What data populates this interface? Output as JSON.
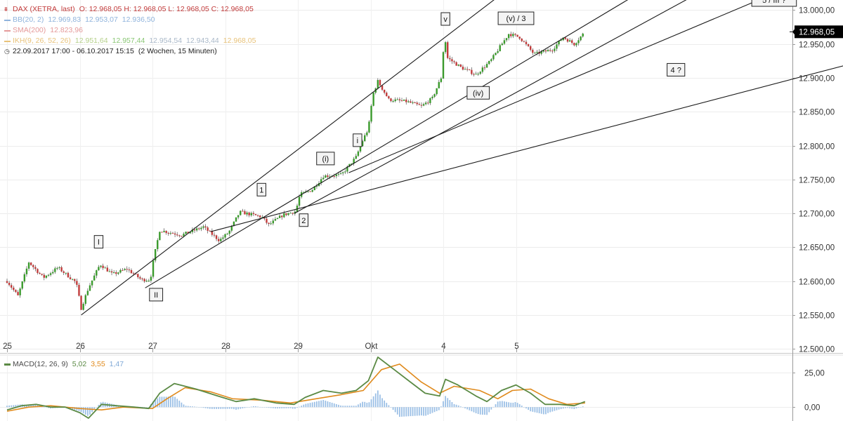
{
  "legend": {
    "title": "DAX (XETRA, last)",
    "ohlc": "O: 12.968,05  H: 12.968,05  L: 12.968,05  C: 12.968,05",
    "bb": {
      "label": "BB(20, 2)",
      "values": [
        "12.969,83",
        "12.953,07",
        "12.936,50"
      ]
    },
    "sma": {
      "label": "SMA(200)",
      "value": "12.823,96"
    },
    "ikh": {
      "label": "IKH(9, 26, 52, 26)",
      "values": [
        "12.951,64",
        "12.957,44",
        "12.954,54",
        "12.943,44",
        "12.968,05"
      ]
    },
    "range": "22.09.2017 17:00 - 06.10.2017 15:15",
    "period": "(2 Wochen, 15 Minuten)"
  },
  "macd_legend": {
    "label": "MACD(12, 26, 9)",
    "values": [
      "5,02",
      "3,55",
      "1,47"
    ]
  },
  "colors": {
    "up": "#3a9a2c",
    "down": "#c23b3b",
    "macd": "#5b8a45",
    "signal": "#e08a1c",
    "hist": "#9cc0e6",
    "bb": "#8fb3dc",
    "sma": "#e59a9a",
    "ikh": "#e8c27a",
    "price_tag": "#000000"
  },
  "chart_data": [
    {
      "type": "candlestick",
      "title": "",
      "xlabel": "",
      "ylabel": "",
      "x_ticks": [
        "25",
        "26",
        "27",
        "28",
        "29",
        "Okt",
        "4",
        "5"
      ],
      "y_ticks": [
        "12.500,00",
        "12.550,00",
        "12.600,00",
        "12.650,00",
        "12.700,00",
        "12.750,00",
        "12.800,00",
        "12.850,00",
        "12.900,00",
        "12.950,00",
        "13.000,00"
      ],
      "ylim": [
        12495,
        13015
      ],
      "last_price": 12968.05,
      "last_price_label": "12.968,05",
      "grid": true,
      "close_path": [
        {
          "d": 25.0,
          "v": 12600
        },
        {
          "d": 25.15,
          "v": 12578
        },
        {
          "d": 25.3,
          "v": 12628
        },
        {
          "d": 25.5,
          "v": 12605
        },
        {
          "d": 25.7,
          "v": 12620
        },
        {
          "d": 25.95,
          "v": 12598
        },
        {
          "d": 26.02,
          "v": 12560
        },
        {
          "d": 26.12,
          "v": 12590
        },
        {
          "d": 26.28,
          "v": 12625
        },
        {
          "d": 26.45,
          "v": 12610
        },
        {
          "d": 26.65,
          "v": 12618
        },
        {
          "d": 26.85,
          "v": 12602
        },
        {
          "d": 26.97,
          "v": 12602
        },
        {
          "d": 27.02,
          "v": 12635
        },
        {
          "d": 27.1,
          "v": 12675
        },
        {
          "d": 27.4,
          "v": 12668
        },
        {
          "d": 27.7,
          "v": 12680
        },
        {
          "d": 27.92,
          "v": 12660
        },
        {
          "d": 28.05,
          "v": 12672
        },
        {
          "d": 28.2,
          "v": 12702
        },
        {
          "d": 28.5,
          "v": 12695
        },
        {
          "d": 28.6,
          "v": 12683
        },
        {
          "d": 28.8,
          "v": 12698
        },
        {
          "d": 28.97,
          "v": 12703
        },
        {
          "d": 29.03,
          "v": 12728
        },
        {
          "d": 29.2,
          "v": 12735
        },
        {
          "d": 29.35,
          "v": 12755
        },
        {
          "d": 29.6,
          "v": 12757
        },
        {
          "d": 29.8,
          "v": 12783
        },
        {
          "d": 29.9,
          "v": 12810
        },
        {
          "d": 29.97,
          "v": 12825
        },
        {
          "d": 30.03,
          "v": 12875
        },
        {
          "d": 30.1,
          "v": 12895
        },
        {
          "d": 30.25,
          "v": 12868
        },
        {
          "d": 30.5,
          "v": 12865
        },
        {
          "d": 30.7,
          "v": 12858
        },
        {
          "d": 30.85,
          "v": 12870
        },
        {
          "d": 30.97,
          "v": 12900
        },
        {
          "d": 31.02,
          "v": 12965
        },
        {
          "d": 31.05,
          "v": 12930
        },
        {
          "d": 31.25,
          "v": 12915
        },
        {
          "d": 31.45,
          "v": 12905
        },
        {
          "d": 31.65,
          "v": 12925
        },
        {
          "d": 31.9,
          "v": 12965
        },
        {
          "d": 32.05,
          "v": 12960
        },
        {
          "d": 32.25,
          "v": 12935
        },
        {
          "d": 32.5,
          "v": 12942
        },
        {
          "d": 32.65,
          "v": 12960
        },
        {
          "d": 32.8,
          "v": 12950
        },
        {
          "d": 32.95,
          "v": 12968
        }
      ],
      "trend_lines": [
        {
          "from": {
            "d": 26.02,
            "v": 12550
          },
          "to": {
            "d": 32.0,
            "v": 13040
          }
        },
        {
          "from": {
            "d": 26.9,
            "v": 12590
          },
          "to": {
            "d": 34.0,
            "v": 13045
          }
        },
        {
          "from": {
            "d": 28.95,
            "v": 12700
          },
          "to": {
            "d": 34.85,
            "v": 13045
          }
        },
        {
          "from": {
            "d": 29.7,
            "v": 12760
          },
          "to": {
            "d": 36.0,
            "v": 13045
          }
        },
        {
          "from": {
            "d": 27.8,
            "v": 12673
          },
          "to": {
            "d": 38.0,
            "v": 12960
          }
        }
      ],
      "wave_labels": [
        {
          "text": "I",
          "d": 26.26,
          "v": 12658
        },
        {
          "text": "II",
          "d": 27.05,
          "v": 12580
        },
        {
          "text": "1",
          "d": 28.5,
          "v": 12735
        },
        {
          "text": "2",
          "d": 29.08,
          "v": 12690
        },
        {
          "text": "(i)",
          "d": 29.38,
          "v": 12781
        },
        {
          "text": "i",
          "d": 29.82,
          "v": 12808
        },
        {
          "text": "v",
          "d": 31.03,
          "v": 12987
        },
        {
          "text": "(v) / 3",
          "d": 32.0,
          "v": 12988
        },
        {
          "text": "(iv)",
          "d": 31.48,
          "v": 12878
        },
        {
          "text": "4 ?",
          "d": 34.2,
          "v": 12912
        },
        {
          "text": "5 / III ?",
          "d": 35.55,
          "v": 13015
        }
      ]
    },
    {
      "type": "line",
      "title": "MACD(12, 26, 9)",
      "y_ticks": [
        "25,00",
        "0,00"
      ],
      "ylim": [
        -10,
        37
      ],
      "series": [
        {
          "name": "MACD",
          "values": [
            {
              "d": 25.0,
              "v": -2
            },
            {
              "d": 25.2,
              "v": 1
            },
            {
              "d": 25.4,
              "v": 2
            },
            {
              "d": 25.6,
              "v": 0
            },
            {
              "d": 25.8,
              "v": 0
            },
            {
              "d": 26.0,
              "v": -4
            },
            {
              "d": 26.12,
              "v": -8
            },
            {
              "d": 26.3,
              "v": 2
            },
            {
              "d": 26.5,
              "v": 1
            },
            {
              "d": 26.75,
              "v": 0
            },
            {
              "d": 26.95,
              "v": -1
            },
            {
              "d": 27.1,
              "v": 10
            },
            {
              "d": 27.3,
              "v": 17
            },
            {
              "d": 27.6,
              "v": 13
            },
            {
              "d": 27.9,
              "v": 8
            },
            {
              "d": 28.15,
              "v": 4
            },
            {
              "d": 28.4,
              "v": 6
            },
            {
              "d": 28.7,
              "v": 3
            },
            {
              "d": 28.95,
              "v": 2
            },
            {
              "d": 29.1,
              "v": 7
            },
            {
              "d": 29.35,
              "v": 12
            },
            {
              "d": 29.6,
              "v": 10
            },
            {
              "d": 29.8,
              "v": 12
            },
            {
              "d": 29.97,
              "v": 19
            },
            {
              "d": 30.1,
              "v": 36
            },
            {
              "d": 30.3,
              "v": 28
            },
            {
              "d": 30.55,
              "v": 18
            },
            {
              "d": 30.75,
              "v": 10
            },
            {
              "d": 30.95,
              "v": 8
            },
            {
              "d": 31.03,
              "v": 20
            },
            {
              "d": 31.2,
              "v": 16
            },
            {
              "d": 31.45,
              "v": 8
            },
            {
              "d": 31.6,
              "v": 4
            },
            {
              "d": 31.8,
              "v": 12
            },
            {
              "d": 32.0,
              "v": 16
            },
            {
              "d": 32.2,
              "v": 10
            },
            {
              "d": 32.4,
              "v": 2
            },
            {
              "d": 32.6,
              "v": 2
            },
            {
              "d": 32.8,
              "v": 1
            },
            {
              "d": 32.95,
              "v": 4
            }
          ]
        },
        {
          "name": "Signal",
          "values": [
            {
              "d": 25.0,
              "v": -3
            },
            {
              "d": 25.3,
              "v": 0
            },
            {
              "d": 25.6,
              "v": 1
            },
            {
              "d": 26.0,
              "v": -1
            },
            {
              "d": 26.3,
              "v": -2
            },
            {
              "d": 26.6,
              "v": 0
            },
            {
              "d": 27.0,
              "v": -1
            },
            {
              "d": 27.2,
              "v": 6
            },
            {
              "d": 27.45,
              "v": 14
            },
            {
              "d": 27.8,
              "v": 11
            },
            {
              "d": 28.1,
              "v": 6
            },
            {
              "d": 28.5,
              "v": 5
            },
            {
              "d": 28.9,
              "v": 3
            },
            {
              "d": 29.25,
              "v": 6
            },
            {
              "d": 29.6,
              "v": 9
            },
            {
              "d": 29.9,
              "v": 12
            },
            {
              "d": 30.15,
              "v": 27
            },
            {
              "d": 30.4,
              "v": 31
            },
            {
              "d": 30.7,
              "v": 18
            },
            {
              "d": 30.95,
              "v": 10
            },
            {
              "d": 31.15,
              "v": 15
            },
            {
              "d": 31.5,
              "v": 12
            },
            {
              "d": 31.75,
              "v": 6
            },
            {
              "d": 31.95,
              "v": 12
            },
            {
              "d": 32.2,
              "v": 13
            },
            {
              "d": 32.45,
              "v": 6
            },
            {
              "d": 32.7,
              "v": 2
            },
            {
              "d": 32.95,
              "v": 3
            }
          ]
        }
      ]
    }
  ]
}
